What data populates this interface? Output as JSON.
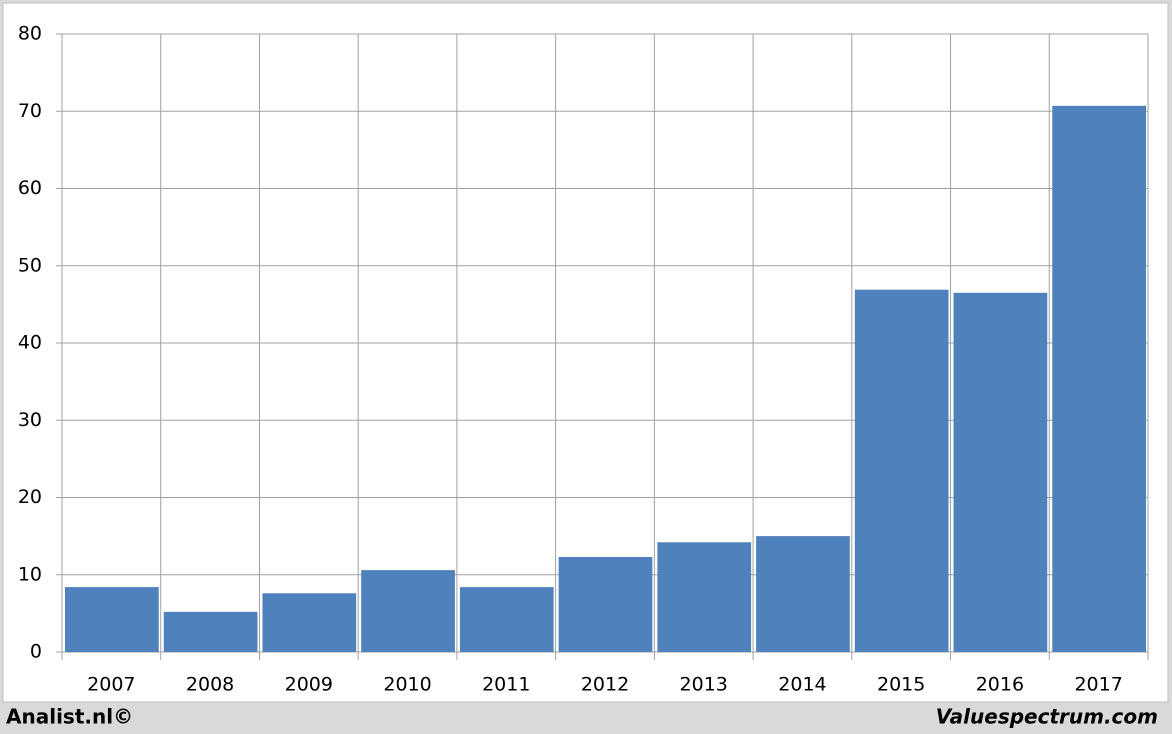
{
  "chart_data": {
    "type": "bar",
    "categories": [
      "2007",
      "2008",
      "2009",
      "2010",
      "2011",
      "2012",
      "2013",
      "2014",
      "2015",
      "2016",
      "2017"
    ],
    "values": [
      8.4,
      5.2,
      7.6,
      10.6,
      8.4,
      12.3,
      14.2,
      15.0,
      46.9,
      46.5,
      70.7
    ],
    "color": "#4f81bd",
    "ylim": [
      0,
      80
    ],
    "yticks": [
      0,
      10,
      20,
      30,
      40,
      50,
      60,
      70,
      80
    ],
    "grid": true
  },
  "footer": {
    "left": "Analist.nl©",
    "right": "Valuespectrum.com"
  }
}
